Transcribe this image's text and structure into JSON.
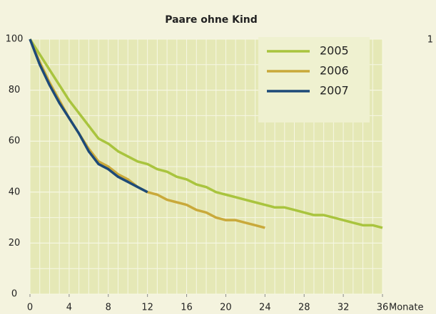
{
  "chart_data": {
    "type": "line",
    "title": "Paare ohne Kind",
    "x_label": "Monate",
    "x": [
      0,
      1,
      2,
      3,
      4,
      5,
      6,
      7,
      8,
      9,
      10,
      11,
      12,
      13,
      14,
      15,
      16,
      17,
      18,
      19,
      20,
      21,
      22,
      23,
      24,
      25,
      26,
      27,
      28,
      29,
      30,
      31,
      32,
      33,
      34,
      35,
      36
    ],
    "series": [
      {
        "name": "2005",
        "color": "#a9c43e",
        "values": [
          100,
          94,
          88,
          82,
          76,
          71,
          66,
          61,
          59,
          56,
          54,
          52,
          51,
          49,
          48,
          46,
          45,
          43,
          42,
          40,
          39,
          38,
          37,
          36,
          35,
          34,
          34,
          33,
          32,
          31,
          31,
          30,
          29,
          28,
          27,
          27,
          26
        ]
      },
      {
        "name": "2006",
        "color": "#c9a93a",
        "values": [
          100,
          91,
          83,
          76,
          69,
          63,
          57,
          52,
          50,
          47,
          45,
          42,
          40,
          39,
          37,
          36,
          35,
          33,
          32,
          30,
          29,
          29,
          28,
          27,
          26,
          null,
          null,
          null,
          null,
          null,
          null,
          null,
          null,
          null,
          null,
          null,
          null
        ]
      },
      {
        "name": "2007",
        "color": "#1d4a78",
        "values": [
          100,
          90,
          82,
          75,
          69,
          63,
          56,
          51,
          49,
          46,
          44,
          42,
          40,
          null,
          null,
          null,
          null,
          null,
          null,
          null,
          null,
          null,
          null,
          null,
          null,
          null,
          null,
          null,
          null,
          null,
          null,
          null,
          null,
          null,
          null,
          null,
          null
        ]
      }
    ],
    "xlim": [
      0,
      36
    ],
    "xticks": [
      0,
      4,
      8,
      12,
      16,
      20,
      24,
      28,
      32,
      36
    ],
    "ylim": [
      0,
      100
    ],
    "yticks": [
      0,
      20,
      40,
      60,
      80,
      100
    ],
    "grid": true,
    "xgrid_step": 1,
    "ygrid_step": 10,
    "legend": "upper right"
  },
  "edge_text": "1"
}
